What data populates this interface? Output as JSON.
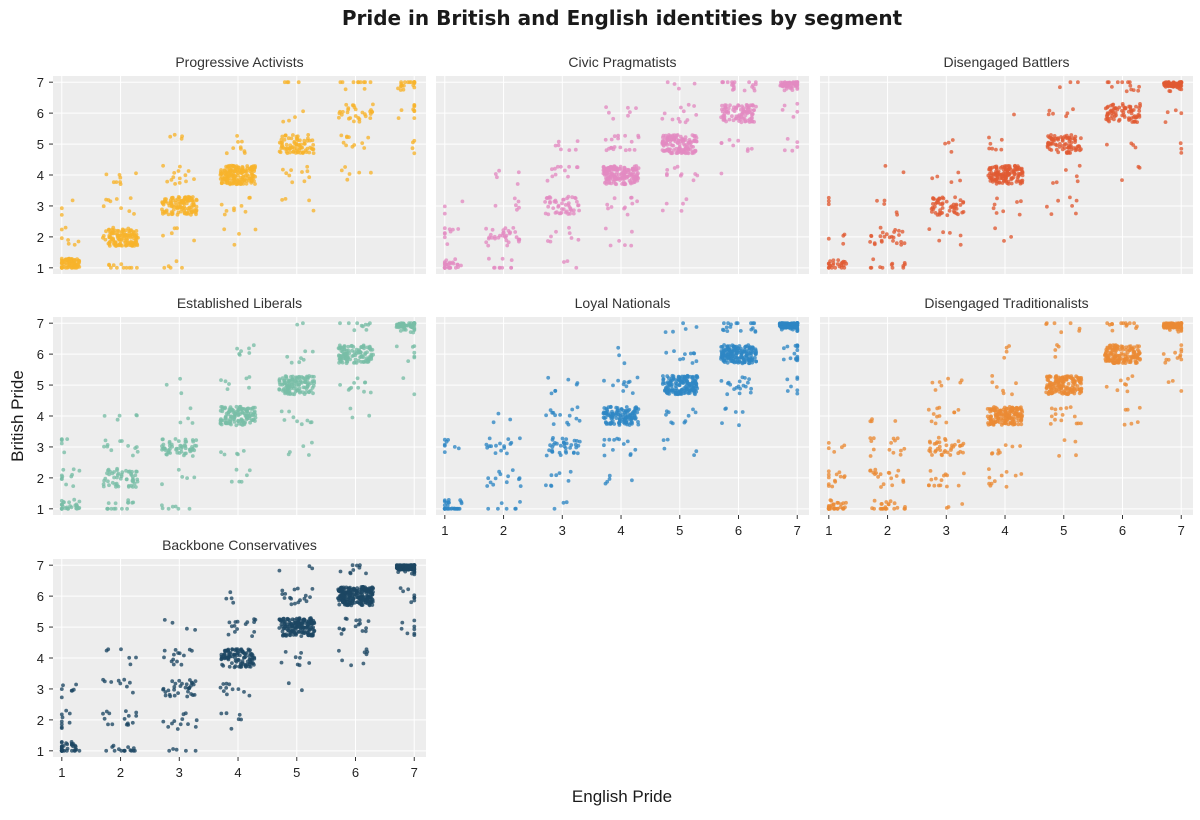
{
  "title": "Pride in British and English identities by segment",
  "chart_data": {
    "type": "scatter",
    "title": "Pride in British and English identities by segment",
    "xlabel": "English Pride",
    "ylabel": "British Pride",
    "xlim": [
      0.85,
      7.2
    ],
    "ylim": [
      0.8,
      7.2
    ],
    "ticks": [
      "1",
      "2",
      "3",
      "4",
      "5",
      "6",
      "7"
    ],
    "grid": true,
    "jitter": 0.3,
    "panels": [
      {
        "name": "Progressive Activists",
        "color": "#f7b42c",
        "clusters": [
          {
            "x": 1,
            "y": 1,
            "n": 55
          },
          {
            "x": 2,
            "y": 2,
            "n": 110
          },
          {
            "x": 3,
            "y": 3,
            "n": 110
          },
          {
            "x": 4,
            "y": 4,
            "n": 160
          },
          {
            "x": 5,
            "y": 5,
            "n": 70
          },
          {
            "x": 6,
            "y": 6,
            "n": 20
          },
          {
            "x": 7,
            "y": 7,
            "n": 6
          }
        ],
        "offdiag": 230
      },
      {
        "name": "Civic Pragmatists",
        "color": "#e38ac2",
        "clusters": [
          {
            "x": 1,
            "y": 1,
            "n": 8
          },
          {
            "x": 2,
            "y": 2,
            "n": 25
          },
          {
            "x": 3,
            "y": 3,
            "n": 40
          },
          {
            "x": 4,
            "y": 4,
            "n": 150
          },
          {
            "x": 5,
            "y": 5,
            "n": 130
          },
          {
            "x": 6,
            "y": 6,
            "n": 80
          },
          {
            "x": 7,
            "y": 7,
            "n": 45
          }
        ],
        "offdiag": 260
      },
      {
        "name": "Disengaged Battlers",
        "color": "#e05a32",
        "clusters": [
          {
            "x": 1,
            "y": 1,
            "n": 15
          },
          {
            "x": 2,
            "y": 2,
            "n": 20
          },
          {
            "x": 3,
            "y": 3,
            "n": 40
          },
          {
            "x": 4,
            "y": 4,
            "n": 130
          },
          {
            "x": 5,
            "y": 5,
            "n": 75
          },
          {
            "x": 6,
            "y": 6,
            "n": 70
          },
          {
            "x": 7,
            "y": 7,
            "n": 60
          }
        ],
        "offdiag": 170
      },
      {
        "name": "Established Liberals",
        "color": "#79bea7",
        "clusters": [
          {
            "x": 1,
            "y": 1,
            "n": 14
          },
          {
            "x": 2,
            "y": 2,
            "n": 40
          },
          {
            "x": 3,
            "y": 3,
            "n": 45
          },
          {
            "x": 4,
            "y": 4,
            "n": 110
          },
          {
            "x": 5,
            "y": 5,
            "n": 115
          },
          {
            "x": 6,
            "y": 6,
            "n": 110
          },
          {
            "x": 7,
            "y": 7,
            "n": 40
          }
        ],
        "offdiag": 230
      },
      {
        "name": "Loyal Nationals",
        "color": "#2e86c4",
        "clusters": [
          {
            "x": 1,
            "y": 1,
            "n": 4
          },
          {
            "x": 2,
            "y": 2,
            "n": 6
          },
          {
            "x": 3,
            "y": 3,
            "n": 30
          },
          {
            "x": 4,
            "y": 4,
            "n": 110
          },
          {
            "x": 5,
            "y": 5,
            "n": 150
          },
          {
            "x": 6,
            "y": 6,
            "n": 160
          },
          {
            "x": 7,
            "y": 7,
            "n": 200
          }
        ],
        "offdiag": 300
      },
      {
        "name": "Disengaged Traditionalists",
        "color": "#ea8b34",
        "clusters": [
          {
            "x": 1,
            "y": 1,
            "n": 8
          },
          {
            "x": 2,
            "y": 2,
            "n": 10
          },
          {
            "x": 3,
            "y": 3,
            "n": 30
          },
          {
            "x": 4,
            "y": 4,
            "n": 150
          },
          {
            "x": 5,
            "y": 5,
            "n": 140
          },
          {
            "x": 6,
            "y": 6,
            "n": 130
          },
          {
            "x": 7,
            "y": 7,
            "n": 130
          }
        ],
        "offdiag": 300
      },
      {
        "name": "Backbone Conservatives",
        "color": "#1c4763",
        "clusters": [
          {
            "x": 1,
            "y": 1,
            "n": 6
          },
          {
            "x": 2,
            "y": 2,
            "n": 6
          },
          {
            "x": 3,
            "y": 3,
            "n": 25
          },
          {
            "x": 4,
            "y": 4,
            "n": 90
          },
          {
            "x": 5,
            "y": 5,
            "n": 150
          },
          {
            "x": 6,
            "y": 6,
            "n": 220
          },
          {
            "x": 7,
            "y": 7,
            "n": 230
          }
        ],
        "offdiag": 300
      }
    ]
  }
}
